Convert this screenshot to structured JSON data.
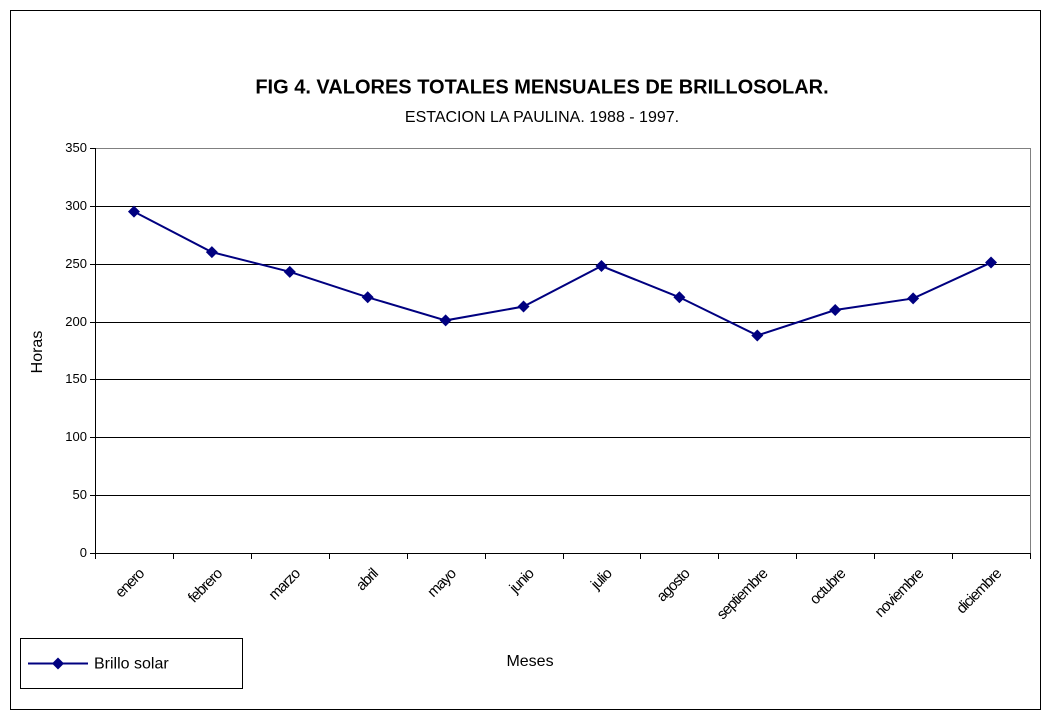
{
  "chart_data": {
    "type": "line",
    "title": "FIG 4.  VALORES TOTALES MENSUALES DE BRILLOSOLAR.",
    "subtitle": "ESTACION LA PAULINA.   1988 - 1997.",
    "x_label": "Meses",
    "y_label": "Horas",
    "categories": [
      "enero",
      "febrero",
      "marzo",
      "abril",
      "mayo",
      "junio",
      "julio",
      "agosto",
      "septiembre",
      "octubre",
      "noviembre",
      "diciembre"
    ],
    "series": [
      {
        "name": "Brillo solar",
        "color": "#000080",
        "values": [
          295,
          260,
          243,
          221,
          201,
          213,
          248,
          221,
          188,
          210,
          220,
          251
        ]
      }
    ],
    "ylim": [
      0,
      350
    ],
    "yticks": [
      0,
      50,
      100,
      150,
      200,
      250,
      300,
      350
    ],
    "grid": true,
    "legend": "bottom-left"
  }
}
